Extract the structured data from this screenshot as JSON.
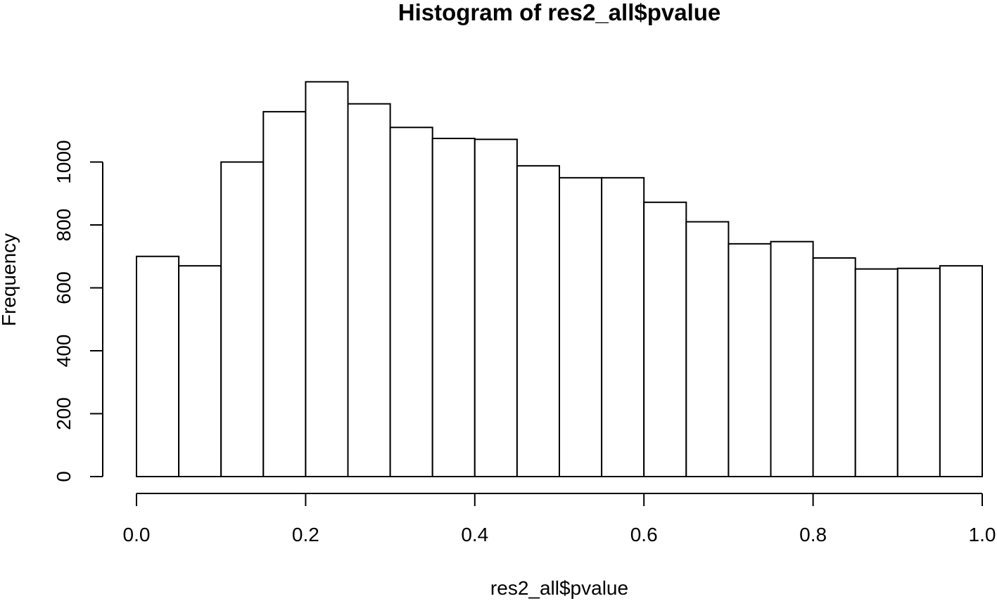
{
  "chart_data": {
    "type": "bar",
    "title": "Histogram of res2_all$pvalue",
    "xlabel": "res2_all$pvalue",
    "ylabel": "Frequency",
    "xlim": [
      0,
      1
    ],
    "ylim": [
      0,
      1250
    ],
    "bin_edges": [
      0.0,
      0.05,
      0.1,
      0.15,
      0.2,
      0.25,
      0.3,
      0.35,
      0.4,
      0.45,
      0.5,
      0.55,
      0.6,
      0.65,
      0.7,
      0.75,
      0.8,
      0.85,
      0.9,
      0.95,
      1.0
    ],
    "values": [
      700,
      670,
      1000,
      1160,
      1255,
      1185,
      1110,
      1075,
      1072,
      988,
      950,
      950,
      872,
      810,
      740,
      747,
      695,
      660,
      662,
      670
    ],
    "x_ticks": [
      {
        "value": 0.0,
        "label": "0.0"
      },
      {
        "value": 0.2,
        "label": "0.2"
      },
      {
        "value": 0.4,
        "label": "0.4"
      },
      {
        "value": 0.6,
        "label": "0.6"
      },
      {
        "value": 0.8,
        "label": "0.8"
      },
      {
        "value": 1.0,
        "label": "1.0"
      }
    ],
    "y_ticks": [
      {
        "value": 0,
        "label": "0"
      },
      {
        "value": 200,
        "label": "200"
      },
      {
        "value": 400,
        "label": "400"
      },
      {
        "value": 600,
        "label": "600"
      },
      {
        "value": 800,
        "label": "800"
      },
      {
        "value": 1000,
        "label": "1000"
      }
    ],
    "grid": false,
    "colors": {
      "bar_fill": "#ffffff",
      "bar_stroke": "#000000"
    }
  }
}
